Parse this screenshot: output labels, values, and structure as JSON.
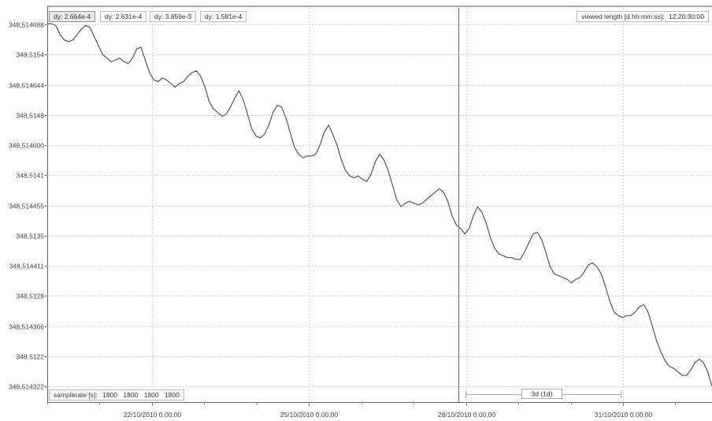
{
  "toolbar": {
    "dy_readouts": [
      "dy: 2.664e-4",
      "dy: 2.631e-4",
      "dy: 3.859e-3",
      "dy: 1.581e-4"
    ],
    "viewed_length_label": "viewed length [d.hh:mm:ss]:",
    "viewed_length_value": "12.20:30:00"
  },
  "samplerate": {
    "label": "samplerate [s]:",
    "values": [
      "1800",
      "1800",
      "1800",
      "1800"
    ]
  },
  "span_marker": "3d (1d)",
  "chart_data": {
    "type": "line",
    "y_tick_labels": [
      "348,514688",
      "348,5154",
      "348,514644",
      "348,5148",
      "348,514600",
      "348,5141",
      "348,514455",
      "348,5135",
      "348,514411",
      "348,5128",
      "348,514366",
      "348,5122",
      "348,514322"
    ],
    "x_tick_labels": [
      "22/10/2010 0.00.00",
      "25/10/2010 0.00.00",
      "28/10/2010 0.00.00",
      "31/10/2010 0.00.00"
    ],
    "x_range_days": [
      20.0,
      32.7
    ],
    "x_tick_positions_days": [
      22,
      25,
      28,
      31
    ],
    "cursor_day": 27.85,
    "grid": true,
    "series": [
      {
        "color": "#555555",
        "values": [
          348.5147,
          348.5147,
          348.51469,
          348.51464,
          348.51461,
          348.5146,
          348.51461,
          348.51464,
          348.51467,
          348.51469,
          348.51468,
          348.51463,
          348.51458,
          348.51453,
          348.51451,
          348.51449,
          348.5145,
          348.51451,
          348.51449,
          348.51448,
          348.51451,
          348.51456,
          348.51457,
          348.5145,
          348.51443,
          348.51439,
          348.51438,
          348.5144,
          348.51439,
          348.51437,
          348.51435,
          348.51437,
          348.51438,
          348.51441,
          348.51443,
          348.51444,
          348.51441,
          348.51435,
          348.51427,
          348.51423,
          348.51421,
          348.51419,
          348.5142,
          348.51424,
          348.51429,
          348.51433,
          348.51428,
          348.5142,
          348.51412,
          348.51408,
          348.51407,
          348.51409,
          348.51414,
          348.51421,
          348.51425,
          348.51424,
          348.51418,
          348.5141,
          348.51402,
          348.51398,
          348.51396,
          348.51397,
          348.51397,
          348.51398,
          348.51403,
          348.5141,
          348.51414,
          348.51409,
          348.51403,
          348.51395,
          348.51389,
          348.51386,
          348.51385,
          348.51386,
          348.51384,
          348.51383,
          348.51387,
          348.51394,
          348.51398,
          348.51395,
          348.51389,
          348.51381,
          348.51373,
          348.51369,
          348.51371,
          348.51372,
          348.51371,
          348.5137,
          348.51371,
          348.51373,
          348.51375,
          348.51377,
          348.51379,
          348.51377,
          348.51372,
          348.51364,
          348.51359,
          348.51357,
          348.51354,
          348.51357,
          348.51364,
          348.51369,
          348.51366,
          348.5136,
          348.51352,
          348.51346,
          348.51343,
          348.51342,
          348.51341,
          348.51341,
          348.5134,
          348.5134,
          348.51344,
          348.51349,
          348.51354,
          348.51355,
          348.51351,
          348.51344,
          348.51336,
          348.51332,
          348.51331,
          348.5133,
          348.51329,
          348.51327,
          348.51329,
          348.5133,
          348.51333,
          348.51337,
          348.51338,
          348.51336,
          348.51332,
          348.51325,
          348.51317,
          348.51311,
          348.51309,
          348.51308,
          348.51309,
          348.51309,
          348.51311,
          348.51314,
          348.51315,
          348.51311,
          348.51303,
          348.51295,
          348.51289,
          348.51284,
          348.51281,
          348.5128,
          348.51278,
          348.51276,
          348.51276,
          348.51279,
          348.51283,
          348.51285,
          348.51283,
          348.51278,
          348.5127
        ]
      }
    ]
  }
}
